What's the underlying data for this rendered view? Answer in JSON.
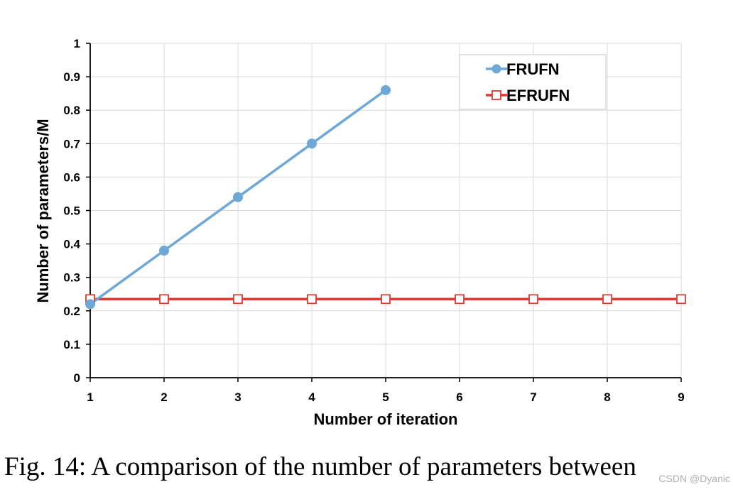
{
  "chart_data": {
    "type": "line",
    "xlabel": "Number of iteration",
    "ylabel": "Number of parameters/M",
    "xlim": [
      1,
      9
    ],
    "ylim": [
      0,
      1
    ],
    "x_ticks": [
      "1",
      "2",
      "3",
      "4",
      "5",
      "6",
      "7",
      "8",
      "9"
    ],
    "y_ticks": [
      "0",
      "0.1",
      "0.2",
      "0.3",
      "0.4",
      "0.5",
      "0.6",
      "0.7",
      "0.8",
      "0.9",
      "1"
    ],
    "grid": true,
    "legend_position": "top-right",
    "series": [
      {
        "name": "FRUFN",
        "color": "#6fa8d6",
        "marker": "filled-circle",
        "x": [
          1,
          2,
          3,
          4,
          5
        ],
        "values": [
          0.22,
          0.38,
          0.54,
          0.7,
          0.86
        ]
      },
      {
        "name": "EFRUFN",
        "color": "#e0392f",
        "marker": "hollow-square",
        "x": [
          1,
          2,
          3,
          4,
          5,
          6,
          7,
          8,
          9
        ],
        "values": [
          0.235,
          0.235,
          0.235,
          0.235,
          0.235,
          0.235,
          0.235,
          0.235,
          0.235
        ]
      }
    ]
  },
  "caption": "Fig. 14: A comparison of the number of parameters between",
  "watermark": "CSDN @Dyanic"
}
